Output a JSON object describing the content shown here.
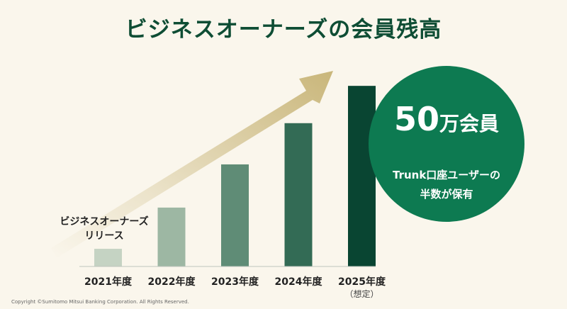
{
  "title": "ビジネスオーナーズの会員残高",
  "annotation": {
    "line1": "ビジネスオーナーズ",
    "line2": "リリース"
  },
  "highlight": {
    "number": "50",
    "unit": "万会員",
    "line1": "Trunk口座ユーザーの",
    "line2": "半数が保有"
  },
  "copyright": "Copyright ©Sumitomo Mitsui Banking Corporation. All Rights Reserved.",
  "chart_data": {
    "type": "bar",
    "categories": [
      "2021年度",
      "2022年度",
      "2023年度",
      "2024年度",
      "2025年度"
    ],
    "category_notes": [
      "",
      "",
      "",
      "",
      "（想定）"
    ],
    "values": [
      9,
      30,
      52,
      73,
      92
    ],
    "ylim": [
      0,
      100
    ],
    "colors": [
      "#c5d3c3",
      "#9db7a3",
      "#5f8c76",
      "#336b55",
      "#094532"
    ],
    "arrow_color": "#c9b67a",
    "accent": "#0d7a51"
  }
}
